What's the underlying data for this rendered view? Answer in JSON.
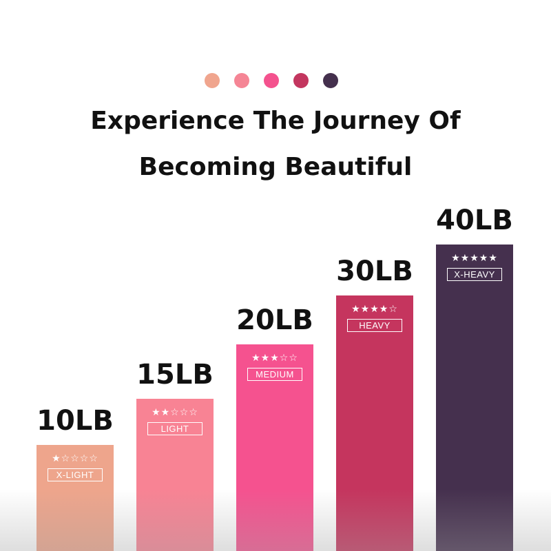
{
  "title_line1": "Experience The Journey Of",
  "title_line2": "Becoming Beautiful",
  "dots": [
    "#f0a58e",
    "#f58595",
    "#f4528e",
    "#c3365f",
    "#44304d"
  ],
  "bars": [
    {
      "weight": "10LB",
      "level": "X-LIGHT",
      "stars": "★☆☆☆☆",
      "rating": 1,
      "color": "#eea58c"
    },
    {
      "weight": "15LB",
      "level": "LIGHT",
      "stars": "★★☆☆☆",
      "rating": 2,
      "color": "#f88394"
    },
    {
      "weight": "20LB",
      "level": "MEDIUM",
      "stars": "★★★☆☆",
      "rating": 3,
      "color": "#f5528f"
    },
    {
      "weight": "30LB",
      "level": "HEAVY",
      "stars": "★★★★☆",
      "rating": 4,
      "color": "#c5355e"
    },
    {
      "weight": "40LB",
      "level": "X-HEAVY",
      "stars": "★★★★★",
      "rating": 5,
      "color": "#45304e"
    }
  ]
}
